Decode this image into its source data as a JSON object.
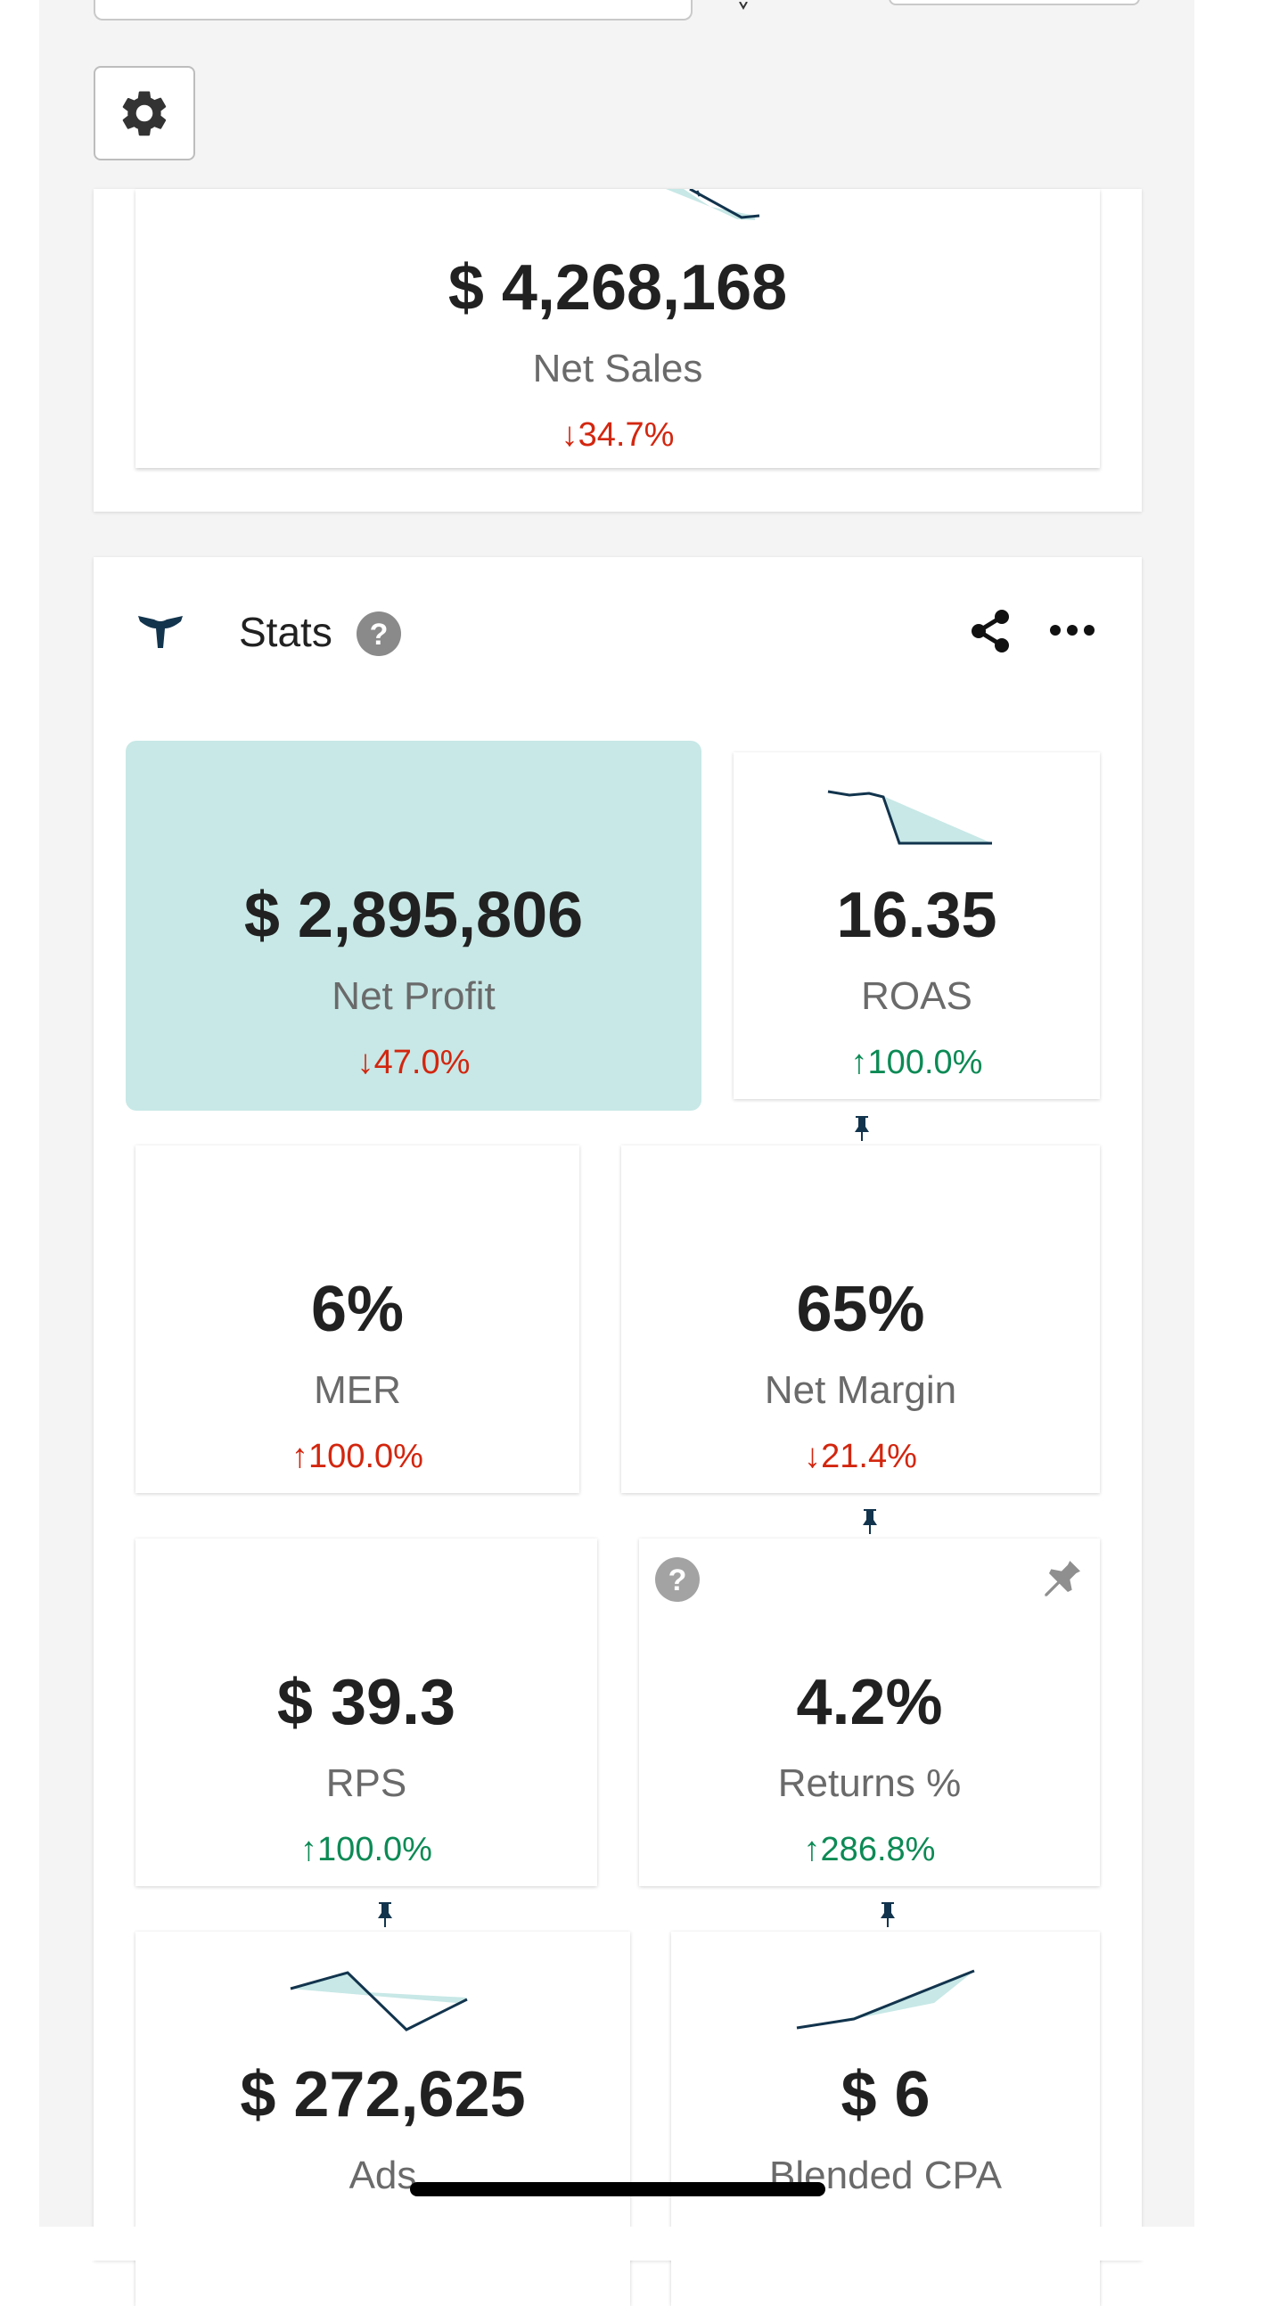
{
  "settings": {
    "icon": "gear-icon"
  },
  "net_sales": {
    "value": "$ 4,268,168",
    "label": "Net Sales",
    "delta": "↓34.7%",
    "delta_direction": "down"
  },
  "stats": {
    "title": "Stats",
    "cards": {
      "net_profit": {
        "value": "$ 2,895,806",
        "label": "Net Profit",
        "delta": "↓47.0%"
      },
      "roas": {
        "value": "16.35",
        "label": "ROAS",
        "delta": "↑100.0%"
      },
      "mer": {
        "value": "6%",
        "label": "MER",
        "delta": "↑100.0%"
      },
      "net_margin": {
        "value": "65%",
        "label": "Net Margin",
        "delta": "↓21.4%"
      },
      "rps": {
        "value": "$ 39.3",
        "label": "RPS",
        "delta": "↑100.0%"
      },
      "returns": {
        "value": "4.2%",
        "label": "Returns %",
        "delta": "↑286.8%"
      },
      "ads": {
        "value": "$ 272,625",
        "label": "Ads"
      },
      "blended_cpa": {
        "value": "$ 6",
        "label": "Blended CPA"
      }
    }
  },
  "colors": {
    "negative": "#d3260f",
    "positive": "#0c8a55",
    "highlight": "#c7e8e6",
    "spark_line": "#12344d",
    "spark_fill": "#c7e8e6"
  }
}
